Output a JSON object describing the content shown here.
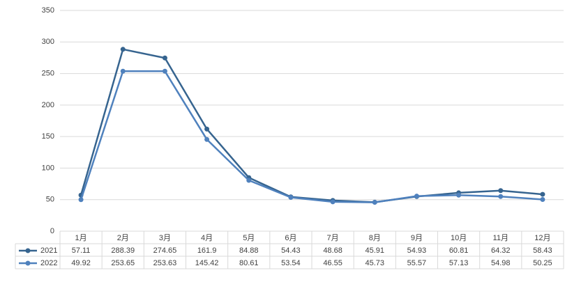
{
  "chart_data": {
    "type": "line",
    "categories": [
      "1月",
      "2月",
      "3月",
      "4月",
      "5月",
      "6月",
      "7月",
      "8月",
      "9月",
      "10月",
      "11月",
      "12月"
    ],
    "series": [
      {
        "name": "2021",
        "color": "#36648f",
        "values": [
          57.11,
          288.39,
          274.65,
          161.9,
          84.88,
          54.43,
          48.68,
          45.91,
          54.93,
          60.81,
          64.32,
          58.43
        ]
      },
      {
        "name": "2022",
        "color": "#4f81bd",
        "values": [
          49.92,
          253.65,
          253.63,
          145.42,
          80.61,
          53.54,
          46.55,
          45.73,
          55.57,
          57.13,
          54.98,
          50.25
        ]
      }
    ],
    "ylim": [
      0,
      350
    ],
    "yticks": [
      0,
      50,
      100,
      150,
      200,
      250,
      300,
      350
    ],
    "grid": true,
    "data_table": true
  }
}
